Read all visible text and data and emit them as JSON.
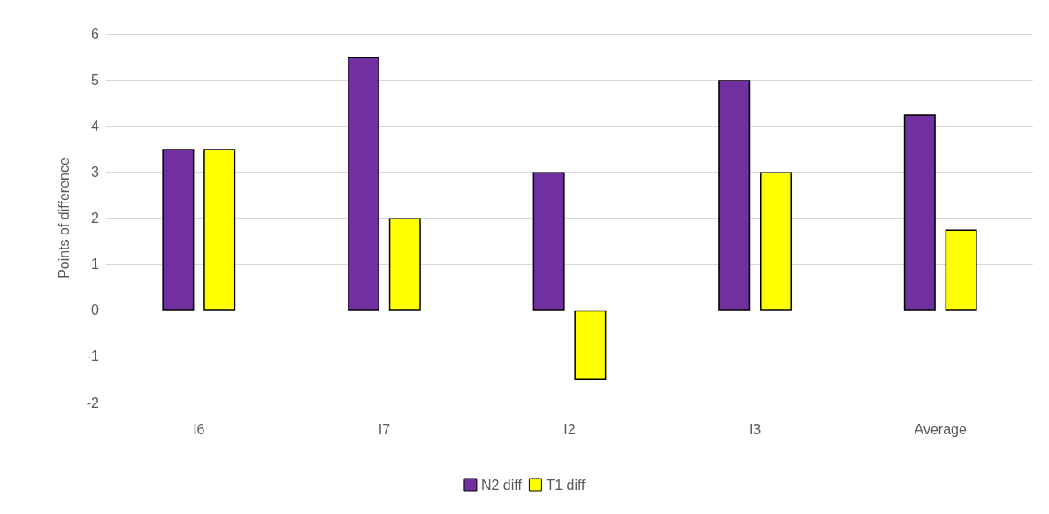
{
  "chart_data": {
    "type": "bar",
    "ylabel": "Points of difference",
    "categories": [
      "I6",
      "I7",
      "I2",
      "I3",
      "Average"
    ],
    "series": [
      {
        "name": "N2 diff",
        "color": "#7030a0",
        "values": [
          3.5,
          5.5,
          3,
          5,
          4.25
        ]
      },
      {
        "name": "T1 diff",
        "color": "#ffff00",
        "values": [
          3.5,
          2,
          -1.5,
          3,
          1.75
        ]
      }
    ],
    "ylim": [
      -2,
      6
    ],
    "yticks": [
      -2,
      -1,
      0,
      1,
      2,
      3,
      4,
      5,
      6
    ],
    "grid": "y",
    "legend": "bottom"
  }
}
